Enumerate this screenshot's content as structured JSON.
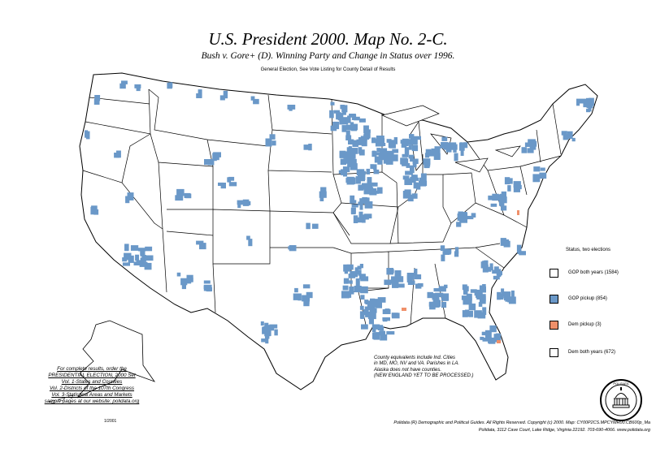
{
  "header": {
    "title": "U.S. President 2000. Map No. 2-C.",
    "subtitle": "Bush v. Gore+ (D). Winning Party and Change in Status over 1996.",
    "note": "General Election, See Vote Listing for County Detail of Results"
  },
  "colors": {
    "gop_both": "#ffffff",
    "gop_pickup": "#6a98c8",
    "dem_pickup": "#f0906a",
    "dem_both": "#ffffff",
    "state_line": "#000000"
  },
  "legend": {
    "title": "Status, two elections",
    "items": [
      {
        "label": "GOP both years (1584)",
        "color": "#ffffff"
      },
      {
        "label": "GOP pickup (854)",
        "color": "#6a98c8"
      },
      {
        "label": "Dem pickup (3)",
        "color": "#f0906a"
      },
      {
        "label": "Dem both years (672)",
        "color": "#ffffff"
      }
    ]
  },
  "promo": {
    "lines": [
      "For complete results, order the",
      "PRESIDENTIAL ELECTION, 2000 Set",
      "Vol. 1-States and Counties",
      "Vol. 2-Districts of the 107th Congress",
      "Vol. 3-Statistical Areas and Markets",
      "sample pages at our website: polidata.org"
    ]
  },
  "county_note": {
    "lines": [
      "County equivalents include Ind. Cities",
      "in MD, MO, NV and VA. Parishes in LA.",
      "Alaska does not have counties.",
      "(NEW ENGLAND YET TO BE PROCESSED.)"
    ]
  },
  "footer": {
    "line1": "Polidata (R) Demographic and Political Guides. All Rights Reserved. Copyright (c) 2000. Map: CY00P2CS.MPCYMR00.CB600p_Ma",
    "line2": "Polidata, 3112 Cave Court, Lake Ridge, Virginia 22192. 703-690-4066. www.polidata.org"
  },
  "small_date": "1/2001",
  "seal_text": "POLIDATA"
}
